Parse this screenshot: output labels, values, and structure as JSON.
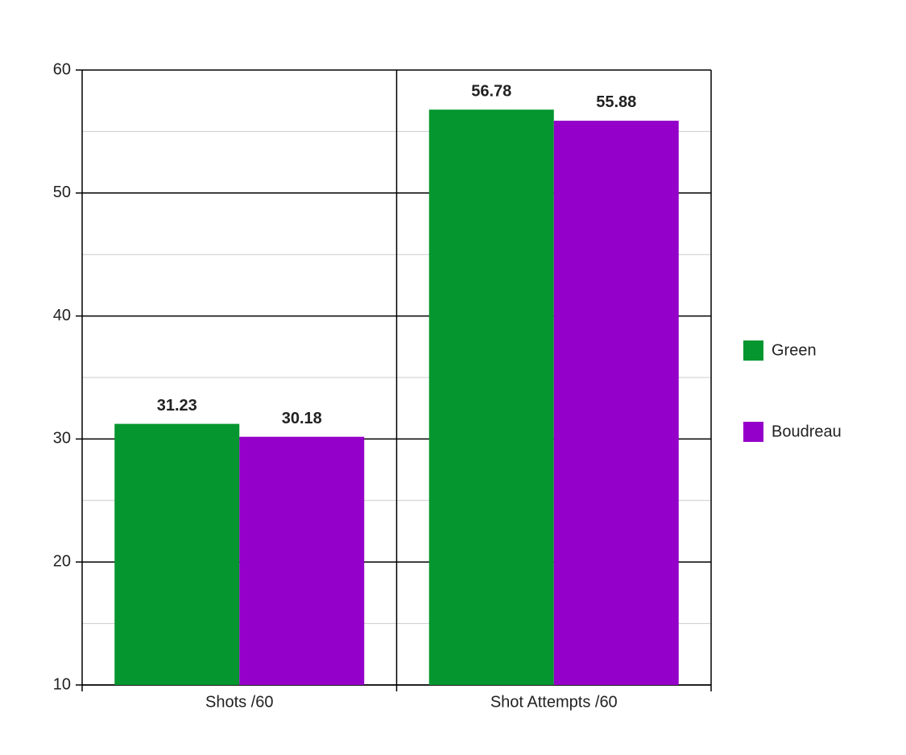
{
  "chart_data": {
    "type": "bar",
    "categories": [
      "Shots /60",
      "Shot Attempts /60"
    ],
    "series": [
      {
        "name": "Green",
        "color": "#05962f",
        "values": [
          31.23,
          56.78
        ]
      },
      {
        "name": "Boudreau",
        "color": "#9400c9",
        "values": [
          30.18,
          55.88
        ]
      }
    ],
    "ylim": [
      10,
      60
    ],
    "yticks": [
      10,
      20,
      30,
      40,
      50,
      60
    ],
    "minor_yticks": [
      15,
      25,
      35,
      45,
      55
    ],
    "grid": true,
    "legend": "right"
  }
}
